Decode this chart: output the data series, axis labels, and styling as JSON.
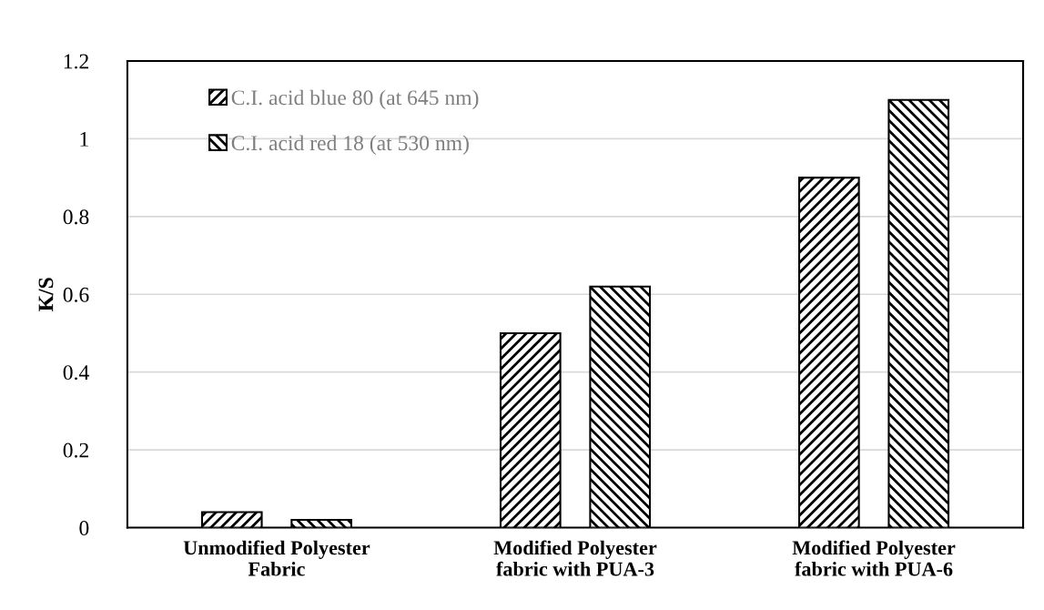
{
  "chart_data": {
    "type": "bar",
    "ylabel": "K/S",
    "categories": [
      "Unmodified Polyester\nFabric",
      "Modified Polyester\nfabric with PUA-3",
      "Modified Polyester\nfabric with PUA-6"
    ],
    "series": [
      {
        "name": "C.I. acid blue 80 (at 645 nm)",
        "color": "#000000",
        "values": [
          0.04,
          0.5,
          0.9
        ]
      },
      {
        "name": "C.I. acid red 18 (at 530 nm)",
        "color": "#000000",
        "values": [
          0.02,
          0.62,
          1.1
        ]
      }
    ],
    "ylim": [
      0,
      1.2
    ],
    "yticks": [
      0,
      0.2,
      0.4,
      0.6,
      0.8,
      1,
      1.2
    ],
    "grid": "y",
    "legend": "top left"
  }
}
